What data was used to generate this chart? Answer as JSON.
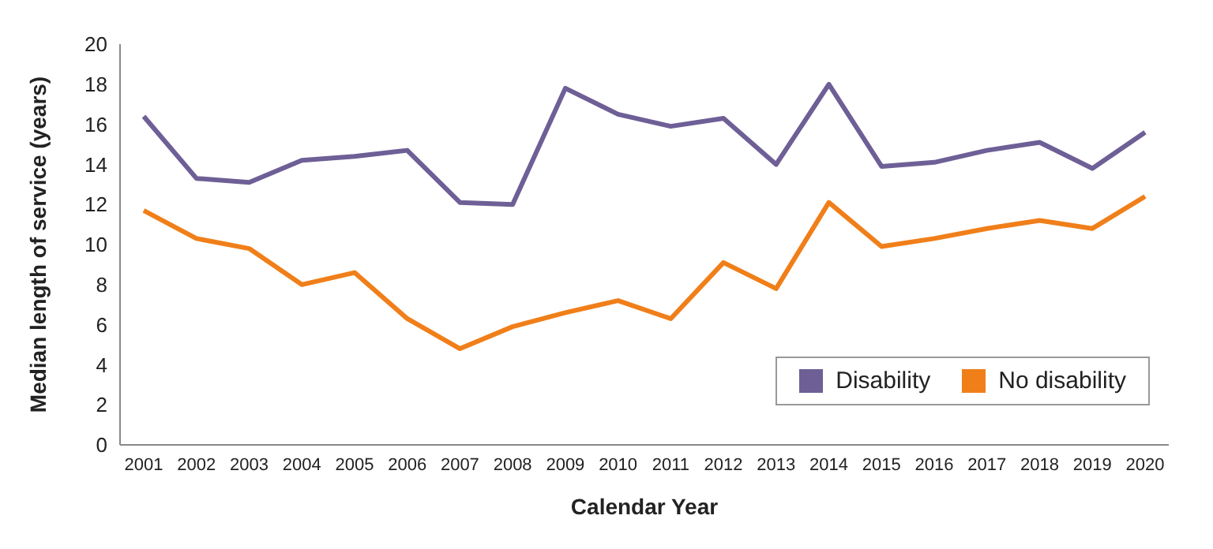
{
  "chart_data": {
    "type": "line",
    "xlabel": "Calendar Year",
    "ylabel": "Median length of service (years)",
    "categories": [
      "2001",
      "2002",
      "2003",
      "2004",
      "2005",
      "2006",
      "2007",
      "2008",
      "2009",
      "2010",
      "2011",
      "2012",
      "2013",
      "2014",
      "2015",
      "2016",
      "2017",
      "2018",
      "2019",
      "2020"
    ],
    "series": [
      {
        "name": "Disability",
        "color": "#6e5f96",
        "values": [
          16.4,
          13.3,
          13.1,
          14.2,
          14.4,
          14.7,
          12.1,
          12.0,
          17.8,
          16.5,
          15.9,
          16.3,
          14.0,
          18.0,
          13.9,
          14.1,
          14.7,
          15.1,
          13.8,
          15.6
        ]
      },
      {
        "name": "No disability",
        "color": "#f07f1a",
        "values": [
          11.7,
          10.3,
          9.8,
          8.0,
          8.6,
          6.3,
          4.8,
          5.9,
          6.6,
          7.2,
          6.3,
          9.1,
          7.8,
          12.1,
          9.9,
          10.3,
          10.8,
          11.2,
          10.8,
          12.4
        ]
      }
    ],
    "ylim": [
      0,
      20
    ],
    "yticks": [
      0,
      2,
      4,
      6,
      8,
      10,
      12,
      14,
      16,
      18,
      20
    ],
    "grid": false,
    "legend": "bottom right",
    "marker": "none",
    "line_style": "solid"
  }
}
